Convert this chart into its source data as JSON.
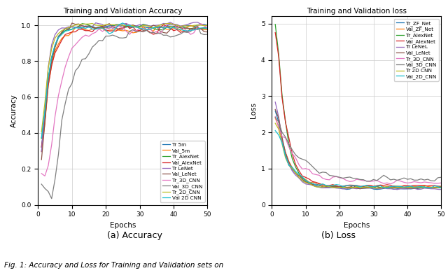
{
  "acc_title": "Training and Validation Accuracy",
  "loss_title": "Training and Validation loss",
  "xlabel": "Epochs",
  "acc_ylabel": "Accuracy",
  "loss_ylabel": "Loss",
  "caption_a": "(a) Accuracy",
  "caption_b": "(b) Loss",
  "fig_caption": "Fig. 1: Accuracy and Loss for Training and Validation sets on",
  "epochs": 50,
  "acc_legend": [
    "Tr 5m",
    "Val_5m",
    "Tr_AlexNet",
    "Val_AlexNet",
    "Tr LeNet",
    "Val_LeNet",
    "Tr_3D_CNN",
    "Val_3D_CNN",
    "Tr_2D_CNN",
    "Val 2D CNN"
  ],
  "loss_legend": [
    "Tr_ZF_Net",
    "Val_ZF_Net",
    "Tr_AlexNet",
    "Val_AlexNet",
    "Tr LeNeL",
    "Val_LeNet",
    "Tr_3D_CNN",
    "Val_3D_CNN",
    "Tr 2D CNN",
    "Val_2D_CNN"
  ],
  "acc_colors": [
    "#1f77b4",
    "#ff7f0e",
    "#2ca02c",
    "#d62728",
    "#9467bd",
    "#8c564b",
    "#e377c2",
    "#7f7f7f",
    "#bcbd22",
    "#17becf"
  ],
  "loss_colors": [
    "#1f77b4",
    "#ff7f0e",
    "#2ca02c",
    "#d62728",
    "#9467bd",
    "#8c564b",
    "#e377c2",
    "#7f7f7f",
    "#bcbd22",
    "#17becf"
  ],
  "acc_ylim": [
    0.0,
    1.05
  ],
  "loss_ylim": [
    0.0,
    5.2
  ],
  "background_color": "#ffffff"
}
